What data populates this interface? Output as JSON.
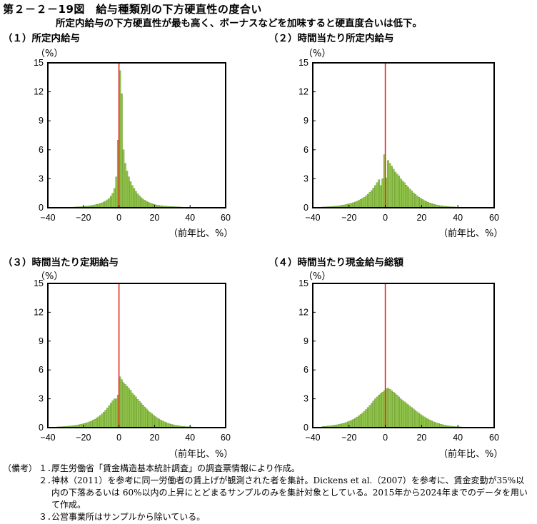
{
  "figure": {
    "title": "第２－２－19図　給与種類別の下方硬直性の度合い",
    "subtitle": "所定内給与の下方硬直性が最も高く、ボーナスなどを加味すると硬直度合いは低下。"
  },
  "colors": {
    "bar": "#92c54b",
    "bar_edge": "#4f7a1f",
    "zero_line": "#e0281e",
    "frame": "#000000"
  },
  "chart_data": [
    {
      "type": "bar",
      "title": "（１）所定内給与",
      "ylabel": "（%）",
      "xlabel": "（前年比、%）",
      "xlim": [
        -40,
        60
      ],
      "ylim": [
        0,
        15
      ],
      "xticks": [
        -40,
        -20,
        0,
        20,
        40,
        60
      ],
      "yticks": [
        0,
        3,
        6,
        9,
        12,
        15
      ],
      "bin_width": 1,
      "bin_start": -35,
      "values": [
        0.02,
        0.02,
        0.03,
        0.03,
        0.04,
        0.04,
        0.05,
        0.05,
        0.06,
        0.07,
        0.08,
        0.09,
        0.1,
        0.11,
        0.12,
        0.14,
        0.16,
        0.18,
        0.2,
        0.23,
        0.26,
        0.3,
        0.34,
        0.39,
        0.45,
        0.52,
        0.6,
        0.7,
        0.82,
        0.98,
        1.2,
        1.5,
        2.0,
        3.2,
        7.0,
        14.2,
        11.8,
        6.0,
        4.6,
        3.8,
        3.2,
        2.7,
        2.3,
        2.0,
        1.7,
        1.45,
        1.25,
        1.05,
        0.9,
        0.78,
        0.67,
        0.58,
        0.5,
        0.43,
        0.37,
        0.32,
        0.28,
        0.25,
        0.22,
        0.2,
        0.18,
        0.16,
        0.15,
        0.14,
        0.13,
        0.12,
        0.11,
        0.1,
        0.09,
        0.08,
        0.07,
        0.06,
        0.05,
        0.05,
        0.04,
        0.04,
        0.03,
        0.03,
        0.03,
        0.02,
        0.02,
        0.02,
        0.02,
        0.01,
        0.01,
        0.01,
        0.01,
        0.01,
        0.01,
        0.01
      ]
    },
    {
      "type": "bar",
      "title": "（２）時間当たり所定内給与",
      "ylabel": "（%）",
      "xlabel": "（前年比、%）",
      "xlim": [
        -40,
        60
      ],
      "ylim": [
        0,
        15
      ],
      "xticks": [
        -40,
        -20,
        0,
        20,
        40,
        60
      ],
      "yticks": [
        0,
        3,
        6,
        9,
        12,
        15
      ],
      "bin_width": 1,
      "bin_start": -35,
      "values": [
        0.08,
        0.09,
        0.1,
        0.11,
        0.12,
        0.13,
        0.15,
        0.17,
        0.19,
        0.21,
        0.24,
        0.27,
        0.3,
        0.34,
        0.38,
        0.43,
        0.48,
        0.54,
        0.6,
        0.68,
        0.77,
        0.87,
        0.98,
        1.1,
        1.25,
        1.4,
        1.6,
        1.8,
        2.05,
        2.3,
        2.6,
        2.9,
        2.3,
        3.0,
        5.5,
        3.1,
        4.9,
        4.6,
        4.3,
        4.0,
        3.7,
        3.5,
        3.3,
        3.0,
        2.8,
        2.6,
        2.35,
        2.15,
        1.95,
        1.75,
        1.55,
        1.4,
        1.25,
        1.1,
        0.98,
        0.86,
        0.75,
        0.66,
        0.58,
        0.5,
        0.44,
        0.38,
        0.33,
        0.29,
        0.25,
        0.22,
        0.19,
        0.17,
        0.15,
        0.13,
        0.11,
        0.1,
        0.09,
        0.08,
        0.07,
        0.06,
        0.05,
        0.05,
        0.04,
        0.04,
        0.03,
        0.03,
        0.03,
        0.02,
        0.02,
        0.02,
        0.02,
        0.01,
        0.01,
        0.01,
        0.01,
        0.01,
        0.01,
        0.01,
        0.01
      ]
    },
    {
      "type": "bar",
      "title": "（３）時間当たり定期給与",
      "ylabel": "（%）",
      "xlabel": "（前年比、%）",
      "xlim": [
        -40,
        60
      ],
      "ylim": [
        0,
        15
      ],
      "xticks": [
        -40,
        -20,
        0,
        20,
        40,
        60
      ],
      "yticks": [
        0,
        3,
        6,
        9,
        12,
        15
      ],
      "bin_width": 1,
      "bin_start": -35,
      "values": [
        0.08,
        0.09,
        0.1,
        0.11,
        0.12,
        0.13,
        0.15,
        0.17,
        0.19,
        0.21,
        0.24,
        0.27,
        0.3,
        0.34,
        0.38,
        0.43,
        0.48,
        0.54,
        0.61,
        0.69,
        0.78,
        0.88,
        1.0,
        1.12,
        1.27,
        1.43,
        1.62,
        1.82,
        2.05,
        2.3,
        2.55,
        2.8,
        3.0,
        3.0,
        3.4,
        5.3,
        5.0,
        4.7,
        4.5,
        4.3,
        4.1,
        3.9,
        3.6,
        3.4,
        3.2,
        2.95,
        2.75,
        2.55,
        2.35,
        2.15,
        1.95,
        1.75,
        1.6,
        1.45,
        1.3,
        1.15,
        1.02,
        0.9,
        0.8,
        0.7,
        0.61,
        0.53,
        0.46,
        0.4,
        0.35,
        0.3,
        0.26,
        0.23,
        0.2,
        0.17,
        0.15,
        0.13,
        0.11,
        0.1,
        0.09,
        0.08,
        0.07,
        0.06,
        0.05,
        0.05,
        0.04,
        0.04,
        0.03,
        0.03,
        0.03,
        0.02,
        0.02,
        0.02,
        0.02,
        0.01,
        0.01,
        0.01,
        0.01,
        0.01,
        0.01
      ]
    },
    {
      "type": "bar",
      "title": "（４）時間当たり現金給与総額",
      "ylabel": "（%）",
      "xlabel": "（前年比、%）",
      "xlim": [
        -40,
        60
      ],
      "ylim": [
        0,
        15
      ],
      "xticks": [
        -40,
        -20,
        0,
        20,
        40,
        60
      ],
      "yticks": [
        0,
        3,
        6,
        9,
        12,
        15
      ],
      "bin_width": 1,
      "bin_start": -35,
      "values": [
        0.12,
        0.13,
        0.15,
        0.17,
        0.19,
        0.21,
        0.24,
        0.27,
        0.3,
        0.34,
        0.38,
        0.43,
        0.48,
        0.54,
        0.61,
        0.69,
        0.78,
        0.88,
        0.99,
        1.11,
        1.24,
        1.38,
        1.54,
        1.71,
        1.9,
        2.1,
        2.32,
        2.55,
        2.78,
        3.0,
        3.2,
        3.4,
        3.55,
        3.7,
        3.85,
        4.05,
        4.1,
        4.0,
        3.85,
        3.7,
        3.55,
        3.4,
        3.2,
        3.0,
        2.85,
        2.7,
        2.55,
        2.4,
        2.25,
        2.1,
        1.95,
        1.8,
        1.65,
        1.5,
        1.37,
        1.24,
        1.12,
        1.0,
        0.9,
        0.8,
        0.71,
        0.62,
        0.55,
        0.48,
        0.42,
        0.36,
        0.31,
        0.27,
        0.23,
        0.2,
        0.17,
        0.15,
        0.13,
        0.11,
        0.1,
        0.09,
        0.08,
        0.07,
        0.06,
        0.05,
        0.05,
        0.04,
        0.04,
        0.03,
        0.03,
        0.02,
        0.02,
        0.02,
        0.02,
        0.01,
        0.01,
        0.01,
        0.01,
        0.01,
        0.01
      ]
    }
  ],
  "notes": {
    "label": "（備考）",
    "items": [
      {
        "num": "１．",
        "text": "厚生労働省「賃金構造基本統計調査」の調査票情報により作成。"
      },
      {
        "num": "２．",
        "text": "神林（2011）を参考に同一労働者の賃上げが観測された者を集計。Dickens et al.（2007）を参考に、賃金変動が35%以内の下落あるいは 60%以内の上昇にとどまるサンプルのみを集計対象としている。2015年から2024年までのデータを用いて作成。"
      },
      {
        "num": "３．",
        "text": "公営事業所はサンプルから除いている。"
      }
    ]
  }
}
